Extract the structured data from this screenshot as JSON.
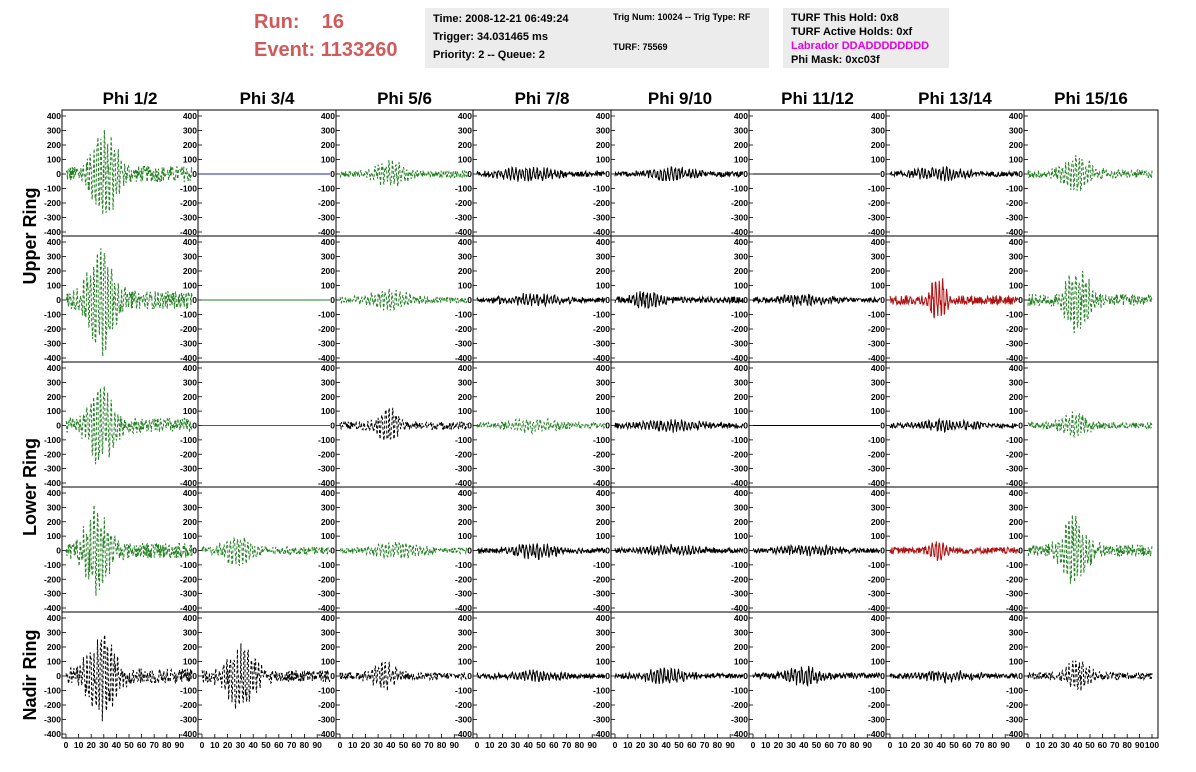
{
  "header": {
    "run_label": "Run:",
    "run_value": "16",
    "event_label": "Event:",
    "event_value": "1133260",
    "time_line": "Time: 2008-12-21 06:49:24",
    "trigger_line": "Trigger: 34.031465 ms",
    "priority_line": "Priority: 2 -- Queue: 2",
    "trig_num_line": "Trig Num: 10024 -- Trig Type: RF",
    "turf_line": "TURF: 75569",
    "turf_hold_line": "TURF This Hold: 0x8",
    "turf_active_line": "TURF Active Holds: 0xf",
    "labrador_line": "Labrador DDADDDDDDDD",
    "phi_mask_line": "Phi Mask: 0xc03f"
  },
  "colors": {
    "red_text": "#d05a5a",
    "magenta": "#e600e6",
    "green": "#208020",
    "black": "#000000",
    "blue": "#2020c0",
    "red": "#b01010"
  },
  "chart_data": {
    "type": "line",
    "title": "",
    "column_titles": [
      "Phi 1/2",
      "Phi 3/4",
      "Phi 5/6",
      "Phi 7/8",
      "Phi 9/10",
      "Phi 11/12",
      "Phi 13/14",
      "Phi 15/16"
    ],
    "ring_labels": [
      "Upper Ring",
      "Lower Ring",
      "Nadir Ring"
    ],
    "ylim": [
      -400,
      400
    ],
    "y_ticks": [
      -400,
      -300,
      -200,
      -100,
      0,
      100,
      200,
      300,
      400
    ],
    "xlim": [
      0,
      100
    ],
    "x_ticks": [
      0,
      10,
      20,
      30,
      40,
      50,
      60,
      70,
      80,
      90,
      100
    ],
    "rows": [
      [
        {
          "color": "green",
          "dashed": true,
          "amp": 300,
          "center": 30,
          "width": 12
        },
        {
          "color": "blue",
          "dashed": false,
          "amp": 0,
          "center": 50,
          "width": 10
        },
        {
          "color": "green",
          "dashed": true,
          "amp": 80,
          "center": 40,
          "width": 15
        },
        {
          "color": "black",
          "dashed": false,
          "amp": 40,
          "center": 40,
          "width": 25
        },
        {
          "color": "black",
          "dashed": false,
          "amp": 40,
          "center": 45,
          "width": 20
        },
        {
          "color": "black",
          "dashed": false,
          "amp": 0,
          "center": 50,
          "width": 10
        },
        {
          "color": "black",
          "dashed": false,
          "amp": 35,
          "center": 40,
          "width": 25
        },
        {
          "color": "green",
          "dashed": true,
          "amp": 110,
          "center": 40,
          "width": 14
        }
      ],
      [
        {
          "color": "green",
          "dashed": true,
          "amp": 340,
          "center": 28,
          "width": 12
        },
        {
          "color": "green",
          "dashed": false,
          "amp": 0,
          "center": 50,
          "width": 10
        },
        {
          "color": "green",
          "dashed": true,
          "amp": 60,
          "center": 40,
          "width": 20
        },
        {
          "color": "black",
          "dashed": false,
          "amp": 35,
          "center": 45,
          "width": 25
        },
        {
          "color": "black",
          "dashed": false,
          "amp": 60,
          "center": 25,
          "width": 12
        },
        {
          "color": "black",
          "dashed": false,
          "amp": 30,
          "center": 40,
          "width": 25
        },
        {
          "color": "red",
          "dashed": false,
          "amp": 140,
          "center": 38,
          "width": 8
        },
        {
          "color": "green",
          "dashed": true,
          "amp": 200,
          "center": 40,
          "width": 12
        }
      ],
      [
        {
          "color": "green",
          "dashed": true,
          "amp": 260,
          "center": 28,
          "width": 12
        },
        {
          "color": "green",
          "dashed": false,
          "amp": 0,
          "center": 50,
          "width": 10
        },
        {
          "color": "black",
          "dashed": true,
          "amp": 110,
          "center": 38,
          "width": 10
        },
        {
          "color": "green",
          "dashed": true,
          "amp": 40,
          "center": 45,
          "width": 25
        },
        {
          "color": "black",
          "dashed": false,
          "amp": 35,
          "center": 45,
          "width": 25
        },
        {
          "color": "black",
          "dashed": false,
          "amp": 0,
          "center": 50,
          "width": 10
        },
        {
          "color": "black",
          "dashed": false,
          "amp": 30,
          "center": 45,
          "width": 25
        },
        {
          "color": "green",
          "dashed": true,
          "amp": 80,
          "center": 38,
          "width": 12
        }
      ],
      [
        {
          "color": "green",
          "dashed": true,
          "amp": 290,
          "center": 25,
          "width": 12
        },
        {
          "color": "green",
          "dashed": true,
          "amp": 90,
          "center": 28,
          "width": 14
        },
        {
          "color": "green",
          "dashed": true,
          "amp": 45,
          "center": 45,
          "width": 25
        },
        {
          "color": "black",
          "dashed": false,
          "amp": 45,
          "center": 45,
          "width": 20
        },
        {
          "color": "black",
          "dashed": false,
          "amp": 30,
          "center": 45,
          "width": 25
        },
        {
          "color": "black",
          "dashed": false,
          "amp": 30,
          "center": 45,
          "width": 25
        },
        {
          "color": "red",
          "dashed": false,
          "amp": 70,
          "center": 38,
          "width": 8
        },
        {
          "color": "green",
          "dashed": true,
          "amp": 220,
          "center": 38,
          "width": 12
        }
      ],
      [
        {
          "color": "black",
          "dashed": true,
          "amp": 270,
          "center": 28,
          "width": 14
        },
        {
          "color": "black",
          "dashed": true,
          "amp": 200,
          "center": 30,
          "width": 14
        },
        {
          "color": "black",
          "dashed": true,
          "amp": 90,
          "center": 35,
          "width": 12
        },
        {
          "color": "black",
          "dashed": false,
          "amp": 30,
          "center": 45,
          "width": 25
        },
        {
          "color": "black",
          "dashed": false,
          "amp": 45,
          "center": 40,
          "width": 20
        },
        {
          "color": "black",
          "dashed": false,
          "amp": 60,
          "center": 40,
          "width": 15
        },
        {
          "color": "black",
          "dashed": false,
          "amp": 30,
          "center": 45,
          "width": 25
        },
        {
          "color": "black",
          "dashed": true,
          "amp": 90,
          "center": 40,
          "width": 12
        }
      ]
    ]
  }
}
